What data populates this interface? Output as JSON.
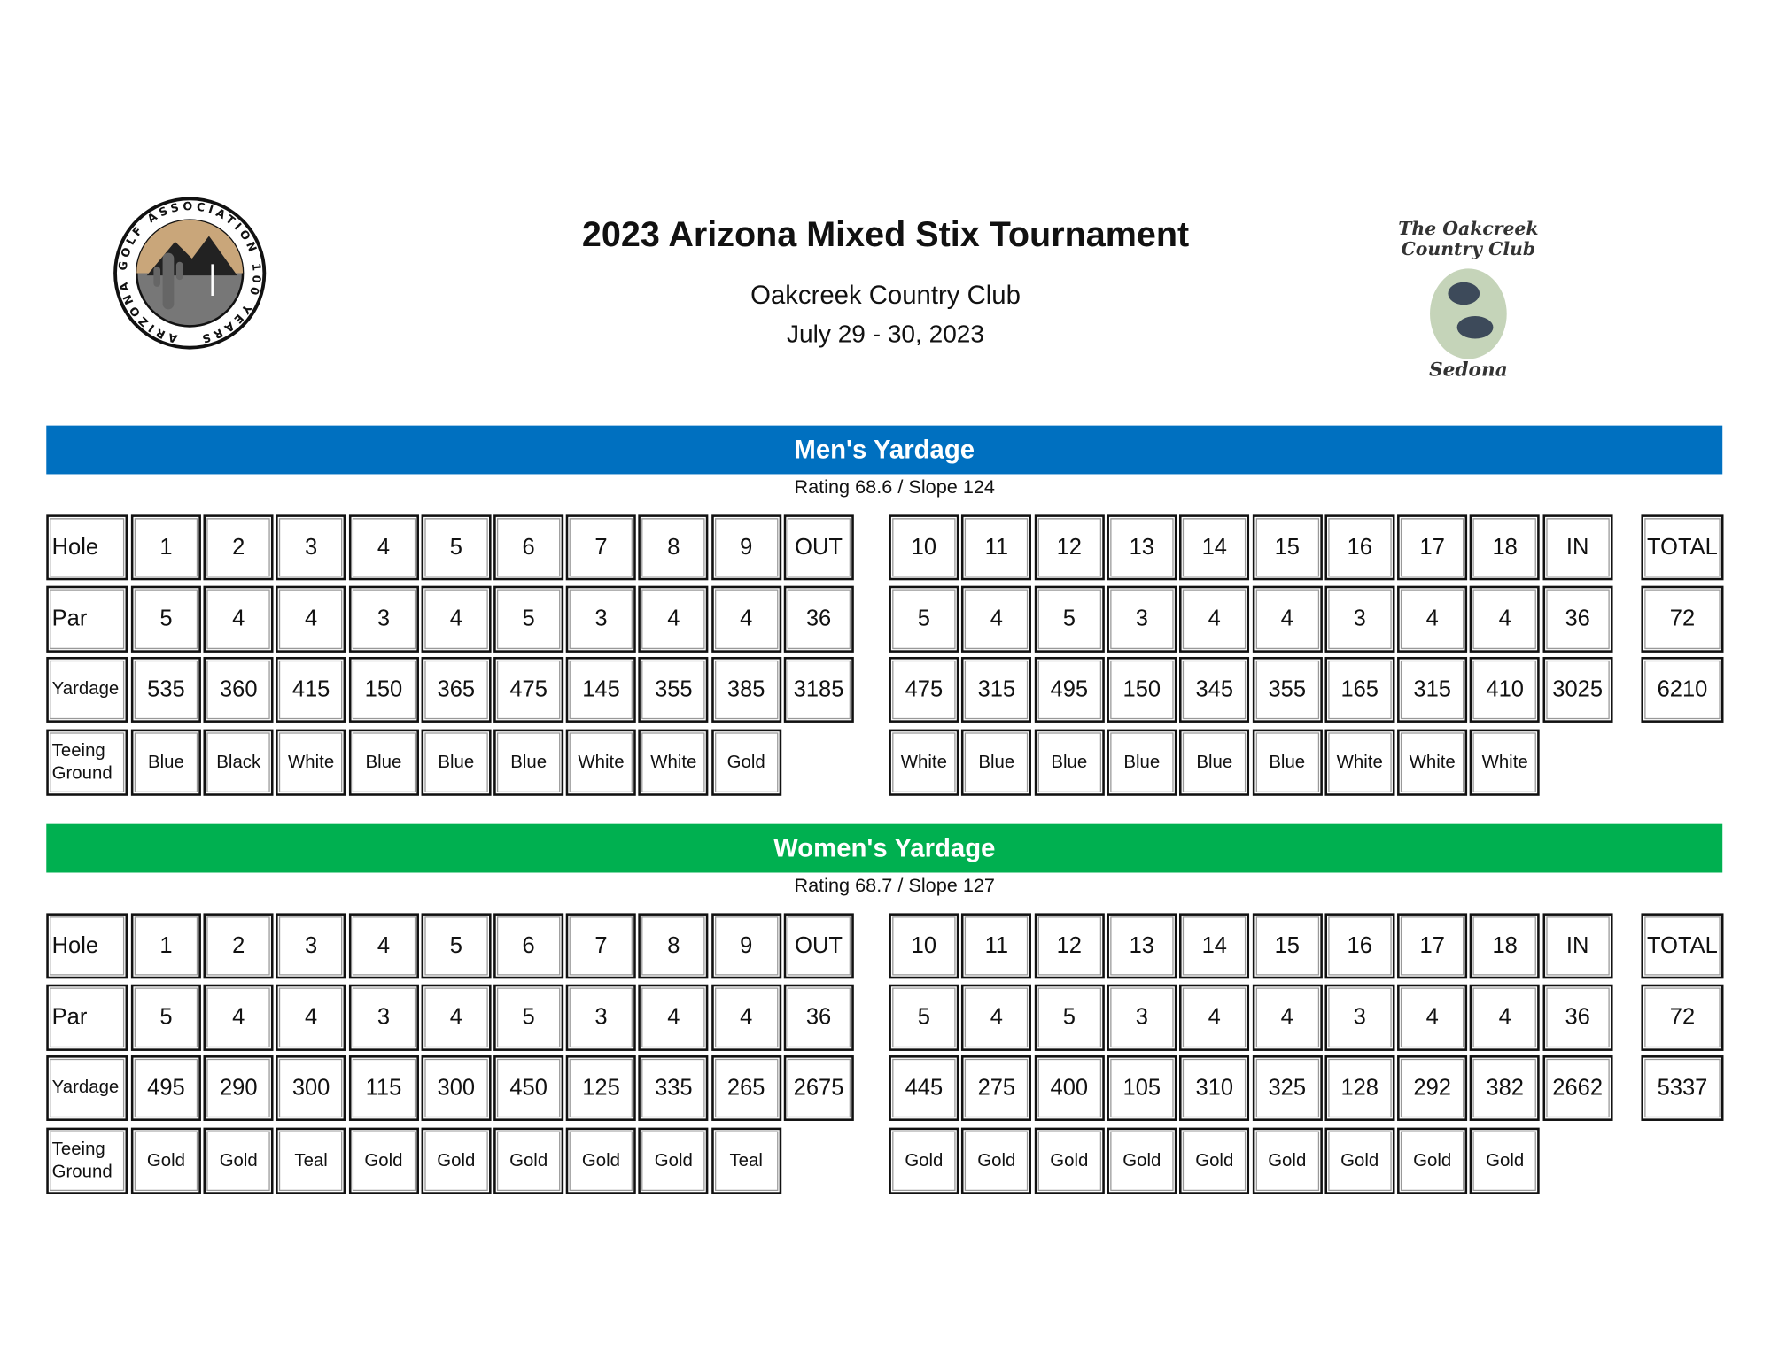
{
  "header": {
    "title": "2023 Arizona Mixed Stix Tournament",
    "venue": "Oakcreek Country Club",
    "dates": "July 29 - 30, 2023",
    "left_logo_text": "ARIZONA GOLF ASSOCIATION 100 YEARS",
    "right_logo_text": "The Oakcreek Country Club Sedona"
  },
  "colors": {
    "men_banner": "#0070C0",
    "women_banner": "#00B050"
  },
  "sections": [
    {
      "id": "men",
      "banner": "Men's Yardage",
      "rating": "Rating 68.6 / Slope 124",
      "row_labels": [
        "Hole",
        "Par",
        "Yardage",
        "Teeing Ground"
      ],
      "front": {
        "hole": [
          "1",
          "2",
          "3",
          "4",
          "5",
          "6",
          "7",
          "8",
          "9",
          "OUT"
        ],
        "par": [
          "5",
          "4",
          "4",
          "3",
          "4",
          "5",
          "3",
          "4",
          "4",
          "36"
        ],
        "yardage": [
          "535",
          "360",
          "415",
          "150",
          "365",
          "475",
          "145",
          "355",
          "385",
          "3185"
        ],
        "tee": [
          "Blue",
          "Black",
          "White",
          "Blue",
          "Blue",
          "Blue",
          "White",
          "White",
          "Gold"
        ]
      },
      "back": {
        "hole": [
          "10",
          "11",
          "12",
          "13",
          "14",
          "15",
          "16",
          "17",
          "18",
          "IN"
        ],
        "par": [
          "5",
          "4",
          "5",
          "3",
          "4",
          "4",
          "3",
          "4",
          "4",
          "36"
        ],
        "yardage": [
          "475",
          "315",
          "495",
          "150",
          "345",
          "355",
          "165",
          "315",
          "410",
          "3025"
        ],
        "tee": [
          "White",
          "Blue",
          "Blue",
          "Blue",
          "Blue",
          "Blue",
          "White",
          "White",
          "White"
        ]
      },
      "total": {
        "hole": "TOTAL",
        "par": "72",
        "yardage": "6210"
      }
    },
    {
      "id": "women",
      "banner": "Women's Yardage",
      "rating": "Rating 68.7 / Slope 127",
      "row_labels": [
        "Hole",
        "Par",
        "Yardage",
        "Teeing Ground"
      ],
      "front": {
        "hole": [
          "1",
          "2",
          "3",
          "4",
          "5",
          "6",
          "7",
          "8",
          "9",
          "OUT"
        ],
        "par": [
          "5",
          "4",
          "4",
          "3",
          "4",
          "5",
          "3",
          "4",
          "4",
          "36"
        ],
        "yardage": [
          "495",
          "290",
          "300",
          "115",
          "300",
          "450",
          "125",
          "335",
          "265",
          "2675"
        ],
        "tee": [
          "Gold",
          "Gold",
          "Teal",
          "Gold",
          "Gold",
          "Gold",
          "Gold",
          "Gold",
          "Teal"
        ]
      },
      "back": {
        "hole": [
          "10",
          "11",
          "12",
          "13",
          "14",
          "15",
          "16",
          "17",
          "18",
          "IN"
        ],
        "par": [
          "5",
          "4",
          "5",
          "3",
          "4",
          "4",
          "3",
          "4",
          "4",
          "36"
        ],
        "yardage": [
          "445",
          "275",
          "400",
          "105",
          "310",
          "325",
          "128",
          "292",
          "382",
          "2662"
        ],
        "tee": [
          "Gold",
          "Gold",
          "Gold",
          "Gold",
          "Gold",
          "Gold",
          "Gold",
          "Gold",
          "Gold"
        ]
      },
      "total": {
        "hole": "TOTAL",
        "par": "72",
        "yardage": "5337"
      }
    }
  ]
}
